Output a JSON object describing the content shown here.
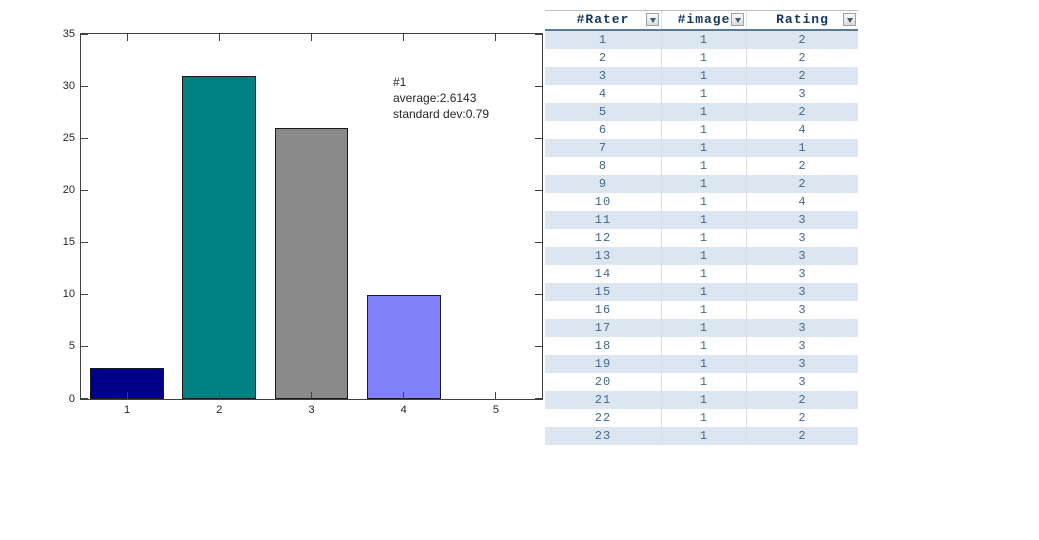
{
  "chart_data": {
    "type": "bar",
    "title": "",
    "xlabel": "",
    "ylabel": "",
    "categories": [
      "1",
      "2",
      "3",
      "4",
      "5"
    ],
    "values": [
      3,
      31,
      26,
      10,
      0
    ],
    "bar_colors": [
      "#00008B",
      "#008080",
      "#8A8A8A",
      "#8080F8",
      "#8080F8"
    ],
    "bar_edge_color": "#1A1A1A",
    "ylim": [
      0,
      35
    ],
    "yticks": [
      0,
      5,
      10,
      15,
      20,
      25,
      30,
      35
    ],
    "grid": false,
    "legend": "none",
    "frame": "box-with-inward-ticks",
    "annotation": {
      "lines": [
        "#1",
        "average:2.6143",
        "standard dev:0.79"
      ]
    }
  },
  "table": {
    "columns": [
      {
        "label": "#Rater",
        "filter_icon": "dropdown-arrow"
      },
      {
        "label": "#image",
        "filter_icon": "dropdown-arrow"
      },
      {
        "label": "Rating",
        "filter_icon": "dropdown-arrow"
      }
    ],
    "rows": [
      [
        1,
        1,
        2
      ],
      [
        2,
        1,
        2
      ],
      [
        3,
        1,
        2
      ],
      [
        4,
        1,
        3
      ],
      [
        5,
        1,
        2
      ],
      [
        6,
        1,
        4
      ],
      [
        7,
        1,
        1
      ],
      [
        8,
        1,
        2
      ],
      [
        9,
        1,
        2
      ],
      [
        10,
        1,
        4
      ],
      [
        11,
        1,
        3
      ],
      [
        12,
        1,
        3
      ],
      [
        13,
        1,
        3
      ],
      [
        14,
        1,
        3
      ],
      [
        15,
        1,
        3
      ],
      [
        16,
        1,
        3
      ],
      [
        17,
        1,
        3
      ],
      [
        18,
        1,
        3
      ],
      [
        19,
        1,
        3
      ],
      [
        20,
        1,
        3
      ],
      [
        21,
        1,
        2
      ],
      [
        22,
        1,
        2
      ],
      [
        23,
        1,
        2
      ]
    ],
    "colors": {
      "band_fill": "#DCE6F1",
      "header_text": "#17375D",
      "cell_text": "#44668C",
      "header_underline": "#5C7A99"
    }
  }
}
